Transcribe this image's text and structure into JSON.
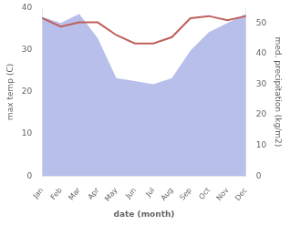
{
  "chart_data": {
    "type": "line",
    "categories": [
      "Jan",
      "Feb",
      "Mar",
      "Apr",
      "May",
      "Jun",
      "Jul",
      "Aug",
      "Sep",
      "Oct",
      "Nov",
      "Dec"
    ],
    "xlabel": "date (month)",
    "ylabel": "max temp (C)",
    "y2label": "med. precipitation (kg/m2)",
    "series": [
      {
        "type": "area",
        "color": "#aab4e6",
        "axis": "y2",
        "values": [
          52,
          50,
          53,
          45,
          32,
          31,
          30,
          32,
          41,
          47,
          50,
          53
        ]
      },
      {
        "type": "line",
        "color": "#c0605a",
        "values": [
          37.5,
          35.5,
          36.5,
          36.5,
          33.5,
          31.5,
          31.5,
          33.0,
          37.5,
          38.0,
          37.0,
          38.0
        ]
      }
    ],
    "ylim": [
      0,
      40
    ],
    "yticks": [
      0,
      10,
      20,
      30,
      40
    ],
    "y2lim": [
      0,
      55
    ],
    "y2ticks": [
      0,
      10,
      20,
      30,
      40,
      50
    ],
    "grid": false
  }
}
